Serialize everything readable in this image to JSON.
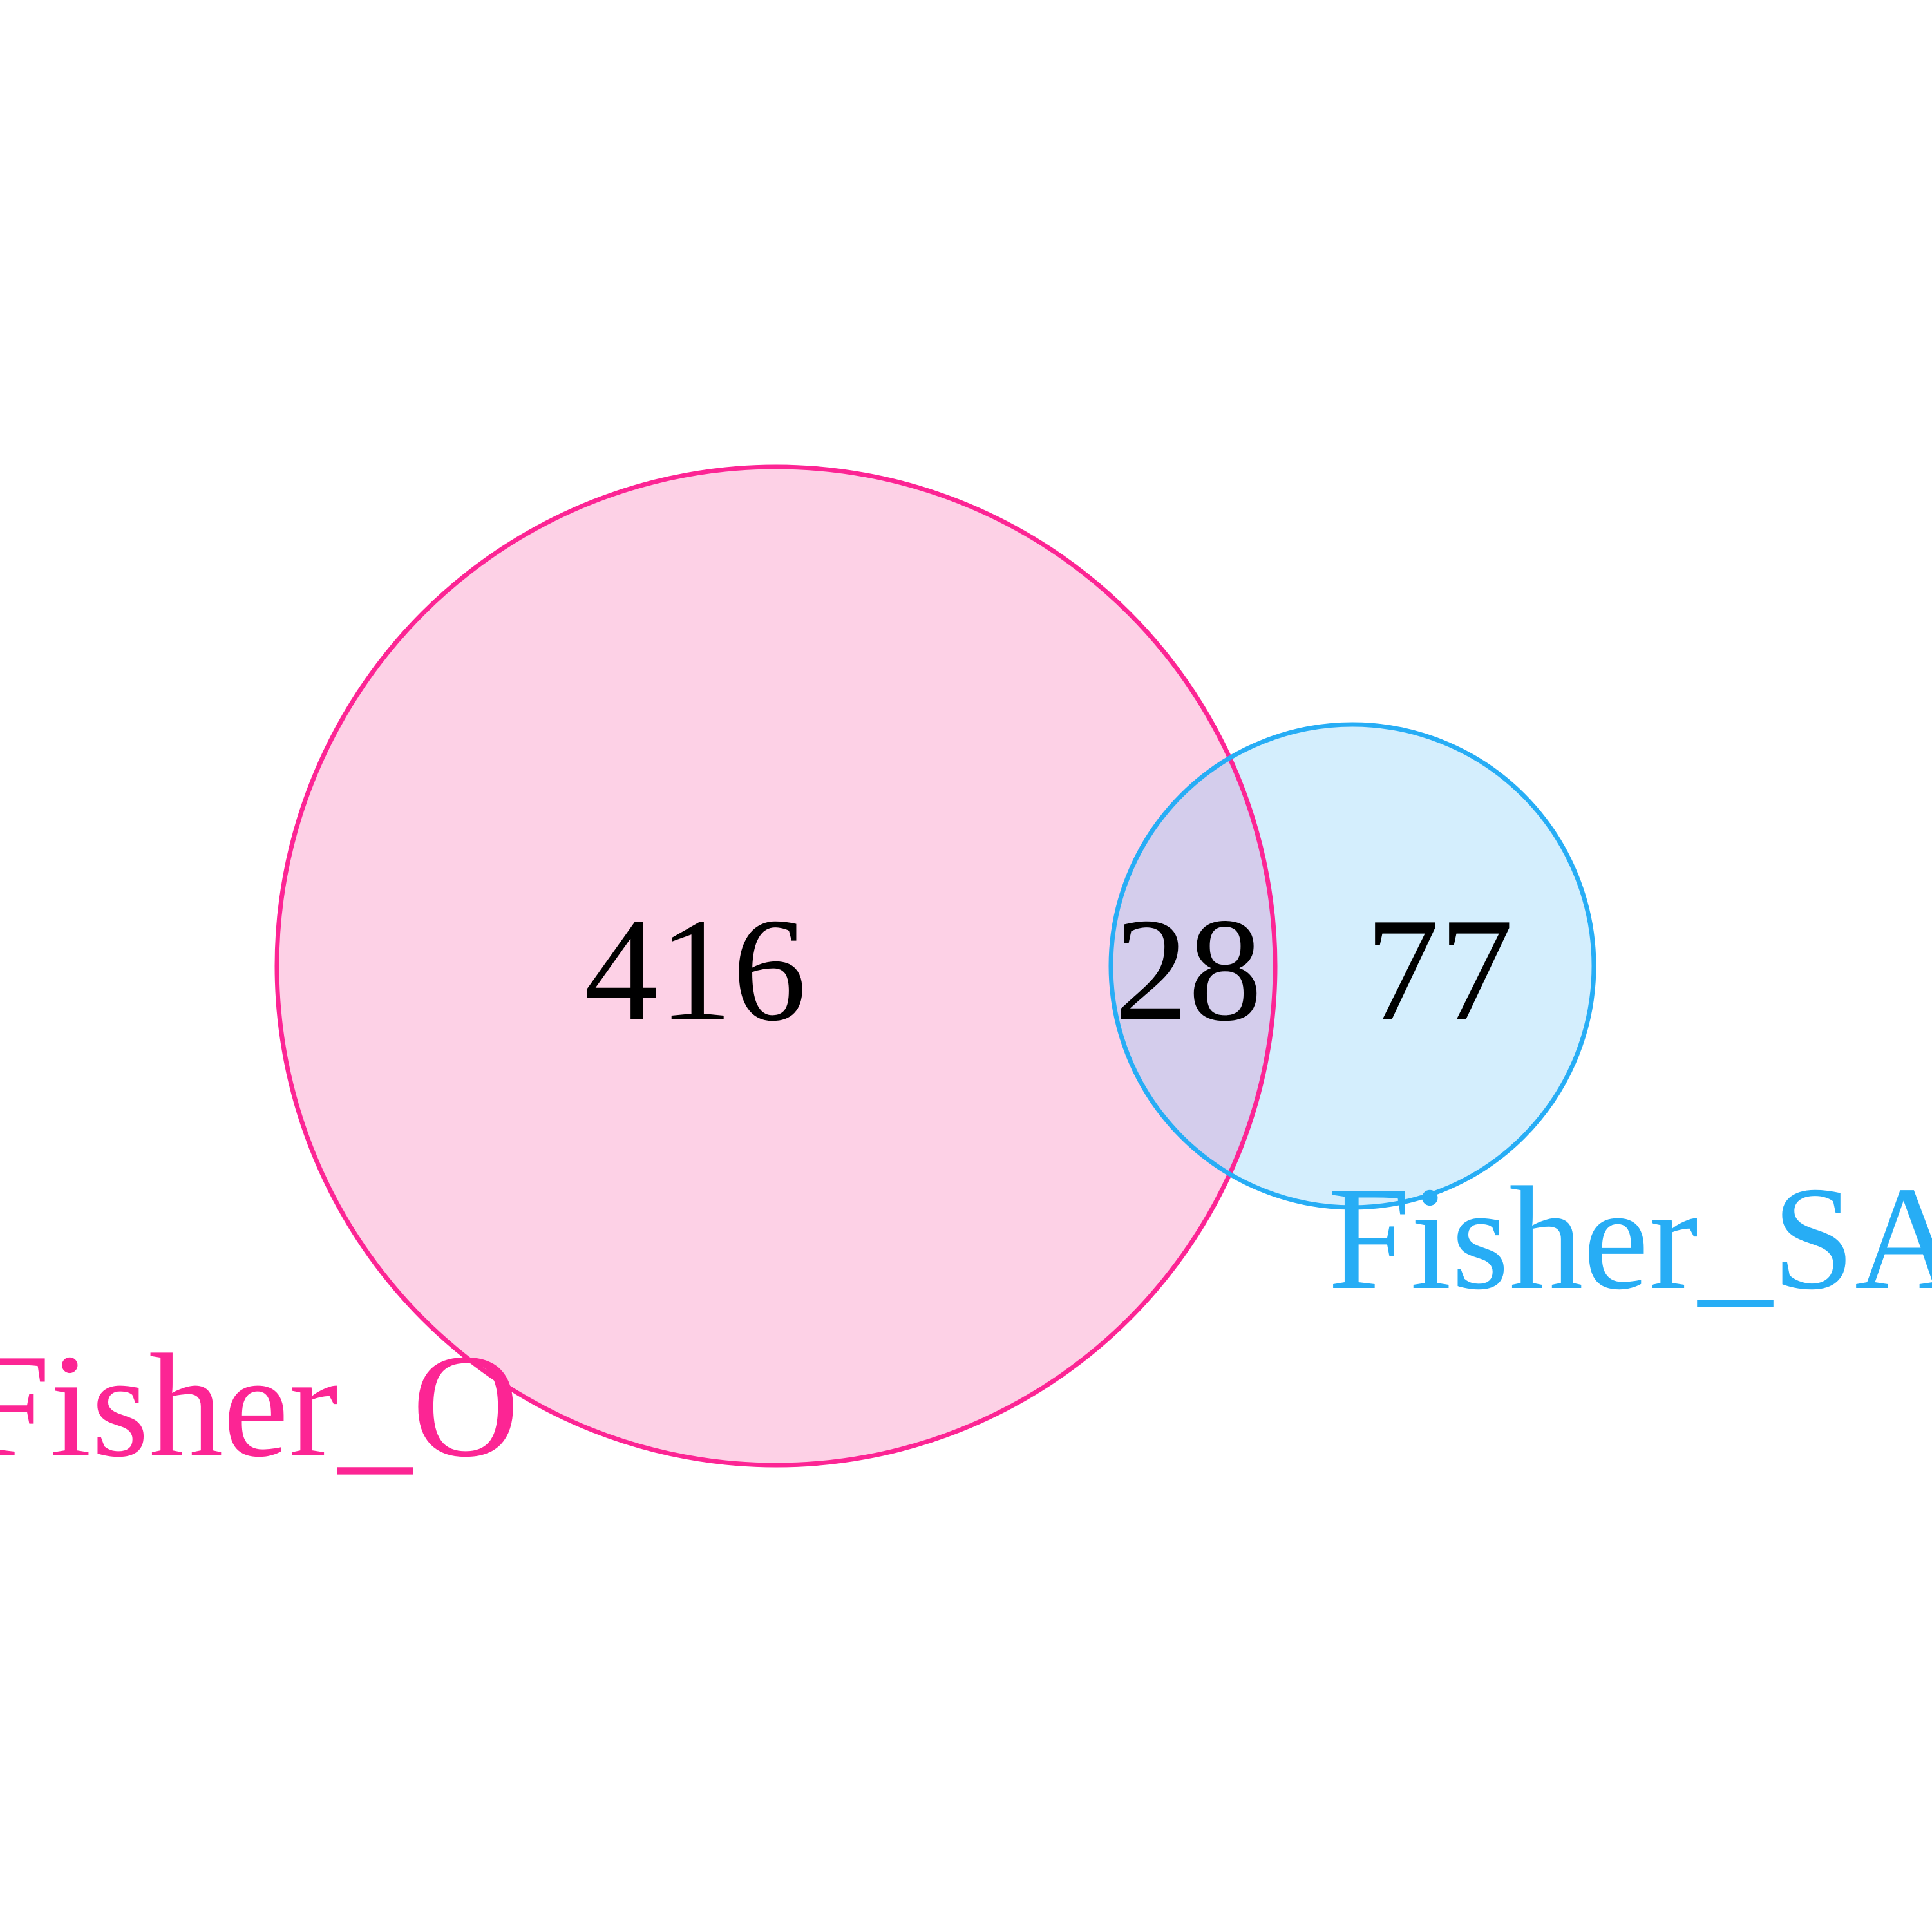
{
  "colors": {
    "set_a": "#fc2594",
    "set_b": "#27adf5",
    "fill_a": "#fdd1e6",
    "fill_b": "#d4eefd",
    "fill_overlap": "#d4cdec"
  },
  "sets": [
    {
      "name": "Fisher_O",
      "only_count": "416"
    },
    {
      "name": "Fisher_SA",
      "only_count": "77"
    }
  ],
  "overlap_count": "28"
}
